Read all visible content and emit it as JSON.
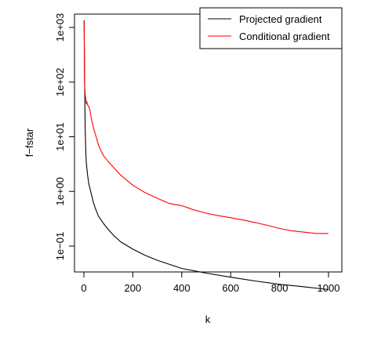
{
  "chart_data": {
    "type": "line",
    "title": "",
    "xlabel": "k",
    "ylabel": "f−fstar",
    "xlim": [
      0,
      1000
    ],
    "ylim": [
      0.01,
      1000
    ],
    "yscale": "log",
    "grid": false,
    "legend_position": "top-right",
    "x_ticks": [
      0,
      200,
      400,
      600,
      800,
      1000
    ],
    "x_tick_labels": [
      "0",
      "200",
      "400",
      "600",
      "800",
      "1000"
    ],
    "y_ticks": [
      0.1,
      1,
      10,
      100,
      1000
    ],
    "y_tick_labels": [
      "1e−01",
      "1e+00",
      "1e+01",
      "1e+02",
      "1e+03"
    ],
    "series": [
      {
        "name": "Projected gradient",
        "color": "#000000",
        "x": [
          1,
          2,
          3,
          5,
          8,
          10,
          15,
          20,
          30,
          40,
          50,
          60,
          80,
          100,
          120,
          150,
          200,
          250,
          300,
          400,
          500,
          600,
          700,
          800,
          900,
          1000
        ],
        "y": [
          1350,
          400,
          120,
          15,
          5,
          3.3,
          2.0,
          1.4,
          0.9,
          0.6,
          0.45,
          0.35,
          0.26,
          0.2,
          0.16,
          0.12,
          0.088,
          0.068,
          0.055,
          0.039,
          0.032,
          0.027,
          0.023,
          0.02,
          0.018,
          0.016
        ]
      },
      {
        "name": "Conditional gradient",
        "color": "#ff0000",
        "x": [
          1,
          2,
          3,
          5,
          8,
          10,
          12,
          15,
          20,
          25,
          30,
          40,
          50,
          60,
          70,
          80,
          100,
          120,
          150,
          200,
          250,
          300,
          350,
          400,
          450,
          500,
          550,
          600,
          650,
          700,
          750,
          800,
          850,
          900,
          950,
          1000
        ],
        "y": [
          1300,
          250,
          90,
          60,
          48,
          40,
          44,
          38,
          36,
          30,
          22,
          14,
          10,
          7,
          5.5,
          4.5,
          3.5,
          2.8,
          2.0,
          1.3,
          0.95,
          0.75,
          0.6,
          0.55,
          0.46,
          0.4,
          0.36,
          0.33,
          0.3,
          0.27,
          0.24,
          0.21,
          0.19,
          0.18,
          0.17,
          0.17
        ]
      }
    ]
  }
}
